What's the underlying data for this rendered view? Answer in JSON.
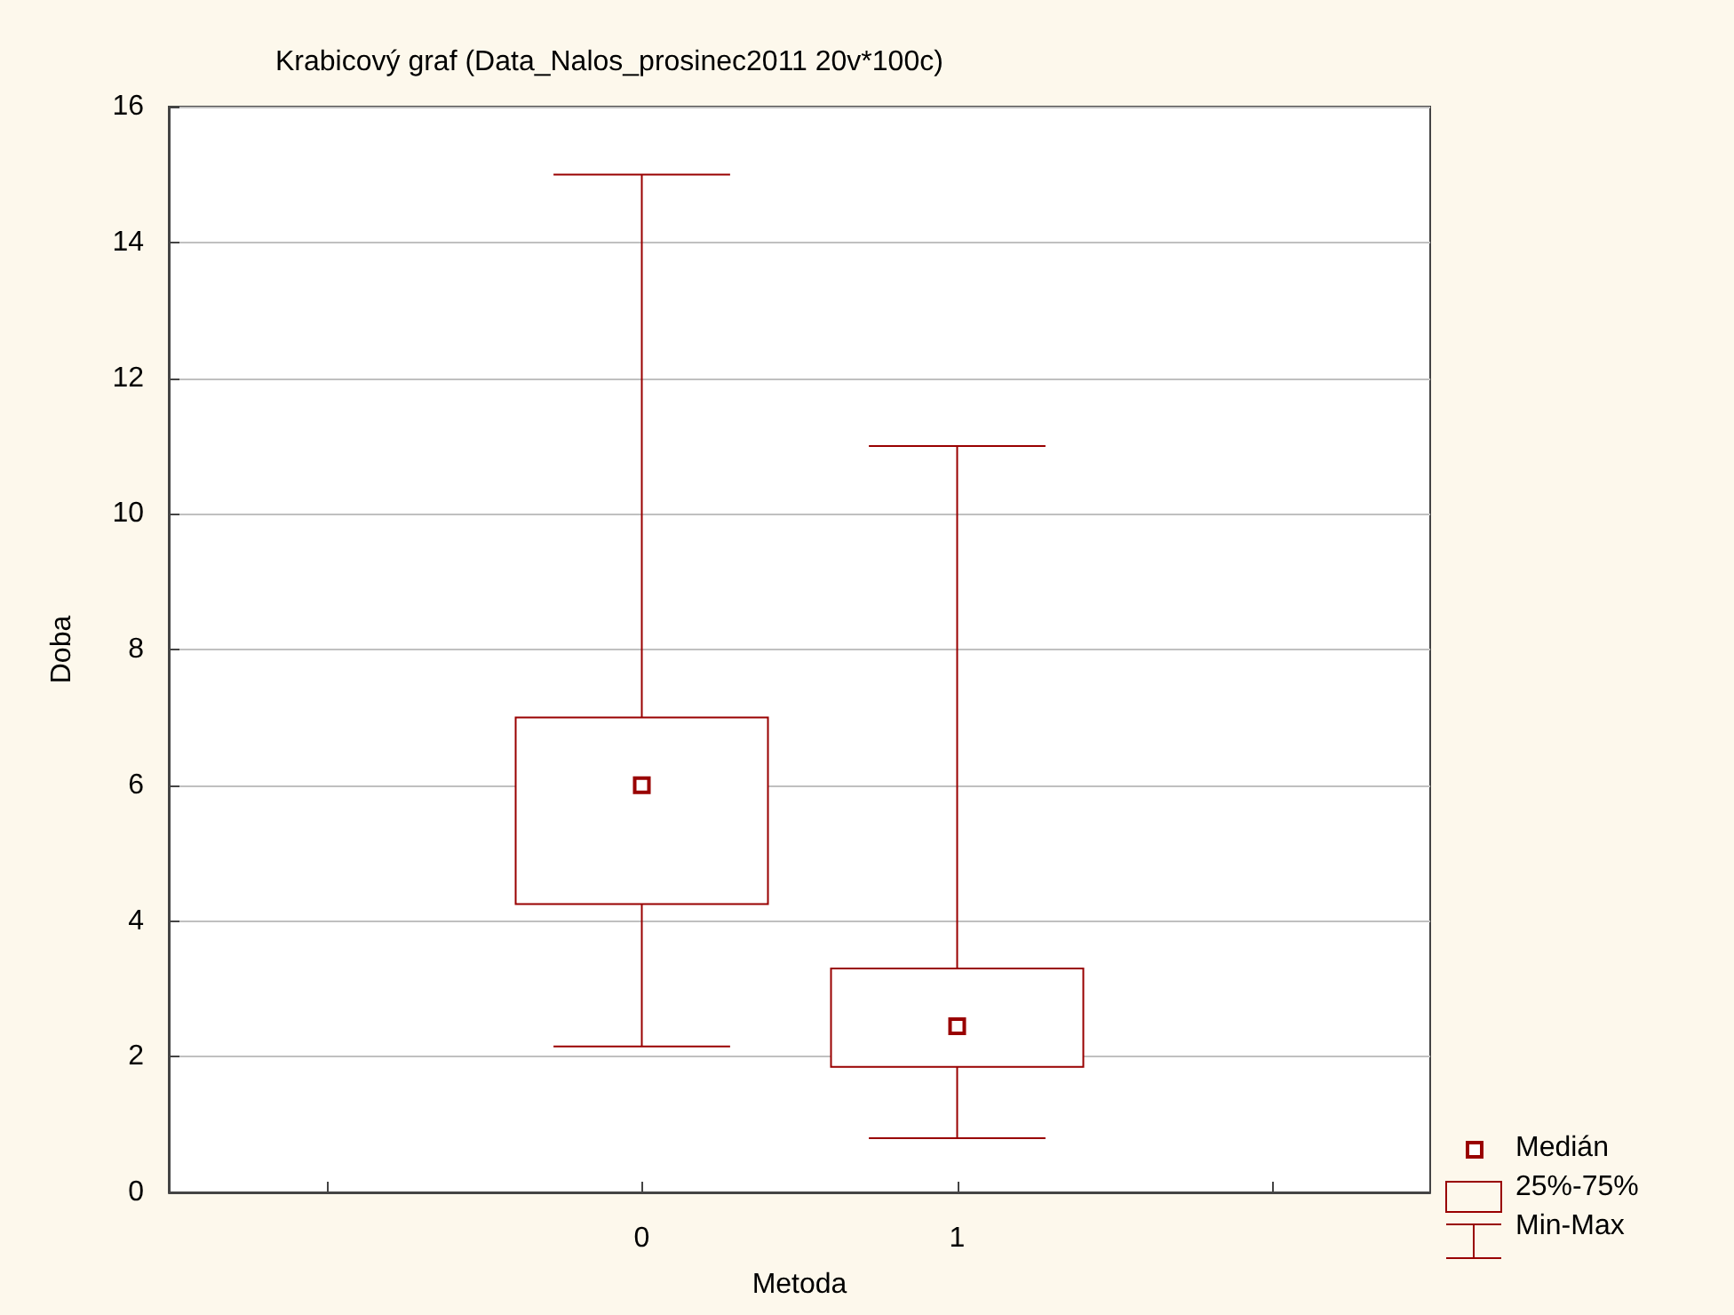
{
  "chart_data": {
    "type": "box",
    "title": "Krabicový graf (Data_Nalos_prosinec2011 20v*100c)",
    "xlabel": "Metoda",
    "ylabel": "Doba",
    "categories": [
      null,
      "0",
      "1",
      null
    ],
    "series": [
      {
        "color": "#990000",
        "boxes": [
          null,
          {
            "low": 2.15,
            "q1": 4.25,
            "median": 6,
            "q3": 7,
            "high": 15
          },
          {
            "low": 0.8,
            "q1": 1.85,
            "median": 2.45,
            "q3": 3.3,
            "high": 11
          },
          null
        ]
      }
    ],
    "ylim": [
      0,
      16
    ],
    "yticks": [
      0,
      2,
      4,
      6,
      8,
      10,
      12,
      14,
      16
    ],
    "grid": "y",
    "marker": "square",
    "annotations": [
      "Medián",
      "25%-75%",
      "Min-Max"
    ]
  }
}
